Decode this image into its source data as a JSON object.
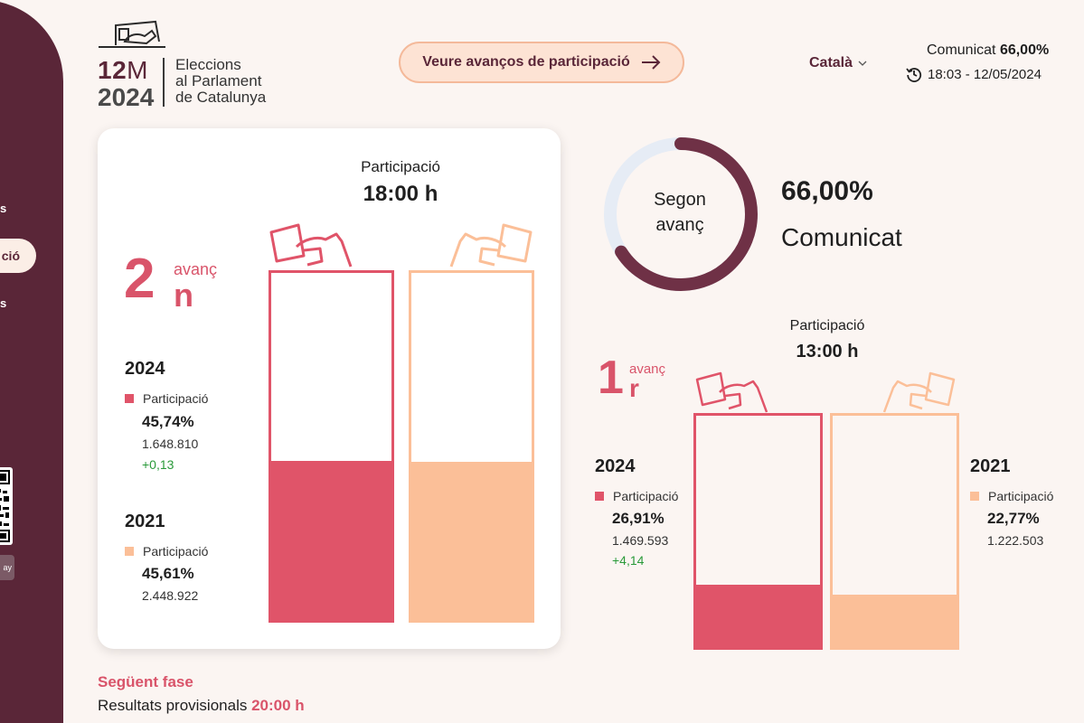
{
  "sidebar": {
    "item_a": "s",
    "item_active": "ció",
    "item_c": "s",
    "store_label": "ay"
  },
  "header": {
    "logo_num": "12",
    "logo_m": "M",
    "logo_year": "2024",
    "logo_line1": "Eleccions",
    "logo_line2": "al Parlament",
    "logo_line3": "de Catalunya",
    "advances_button": "Veure avanços de participació",
    "language": "Català",
    "comunicat_label": "Comunicat",
    "comunicat_value": "66,00%",
    "timestamp": "18:03 - 12/05/2024"
  },
  "second": {
    "title": "Participació",
    "time": "18:00 h",
    "num": "2",
    "word": "avanç",
    "suffix": "n",
    "y2024": {
      "year": "2024",
      "label": "Participació",
      "pct": "45,74%",
      "votes": "1.648.810",
      "diff": "+0,13",
      "value": 45.74
    },
    "y2021": {
      "year": "2021",
      "label": "Participació",
      "pct": "45,61%",
      "votes": "2.448.922",
      "value": 45.61
    }
  },
  "donut": {
    "line1": "Segon",
    "line2": "avanç",
    "pct": "66,00%",
    "label": "Comunicat",
    "value": 66
  },
  "first": {
    "title": "Participació",
    "time": "13:00 h",
    "num": "1",
    "word": "avanç",
    "suffix": "r",
    "y2024": {
      "year": "2024",
      "label": "Participació",
      "pct": "26,91%",
      "votes": "1.469.593",
      "diff": "+4,14",
      "value": 26.91
    },
    "y2021": {
      "year": "2021",
      "label": "Participació",
      "pct": "22,77%",
      "votes": "1.222.503",
      "value": 22.77
    }
  },
  "next": {
    "title": "Següent fase",
    "text": "Resultats provisionals",
    "time": "20:00 h"
  },
  "colors": {
    "brand": "#5a2638",
    "c2024": "#e05469",
    "c2021": "#fbbf98",
    "positive": "#2a9a3a",
    "donut_track": "#e6ecf5"
  },
  "icons": {
    "ballot_2024": "ballot-hand-icon",
    "ballot_2021": "ballot-hand-icon",
    "arrow": "arrow-right-icon",
    "history": "history-clock-icon",
    "chevron": "chevron-down-icon"
  }
}
